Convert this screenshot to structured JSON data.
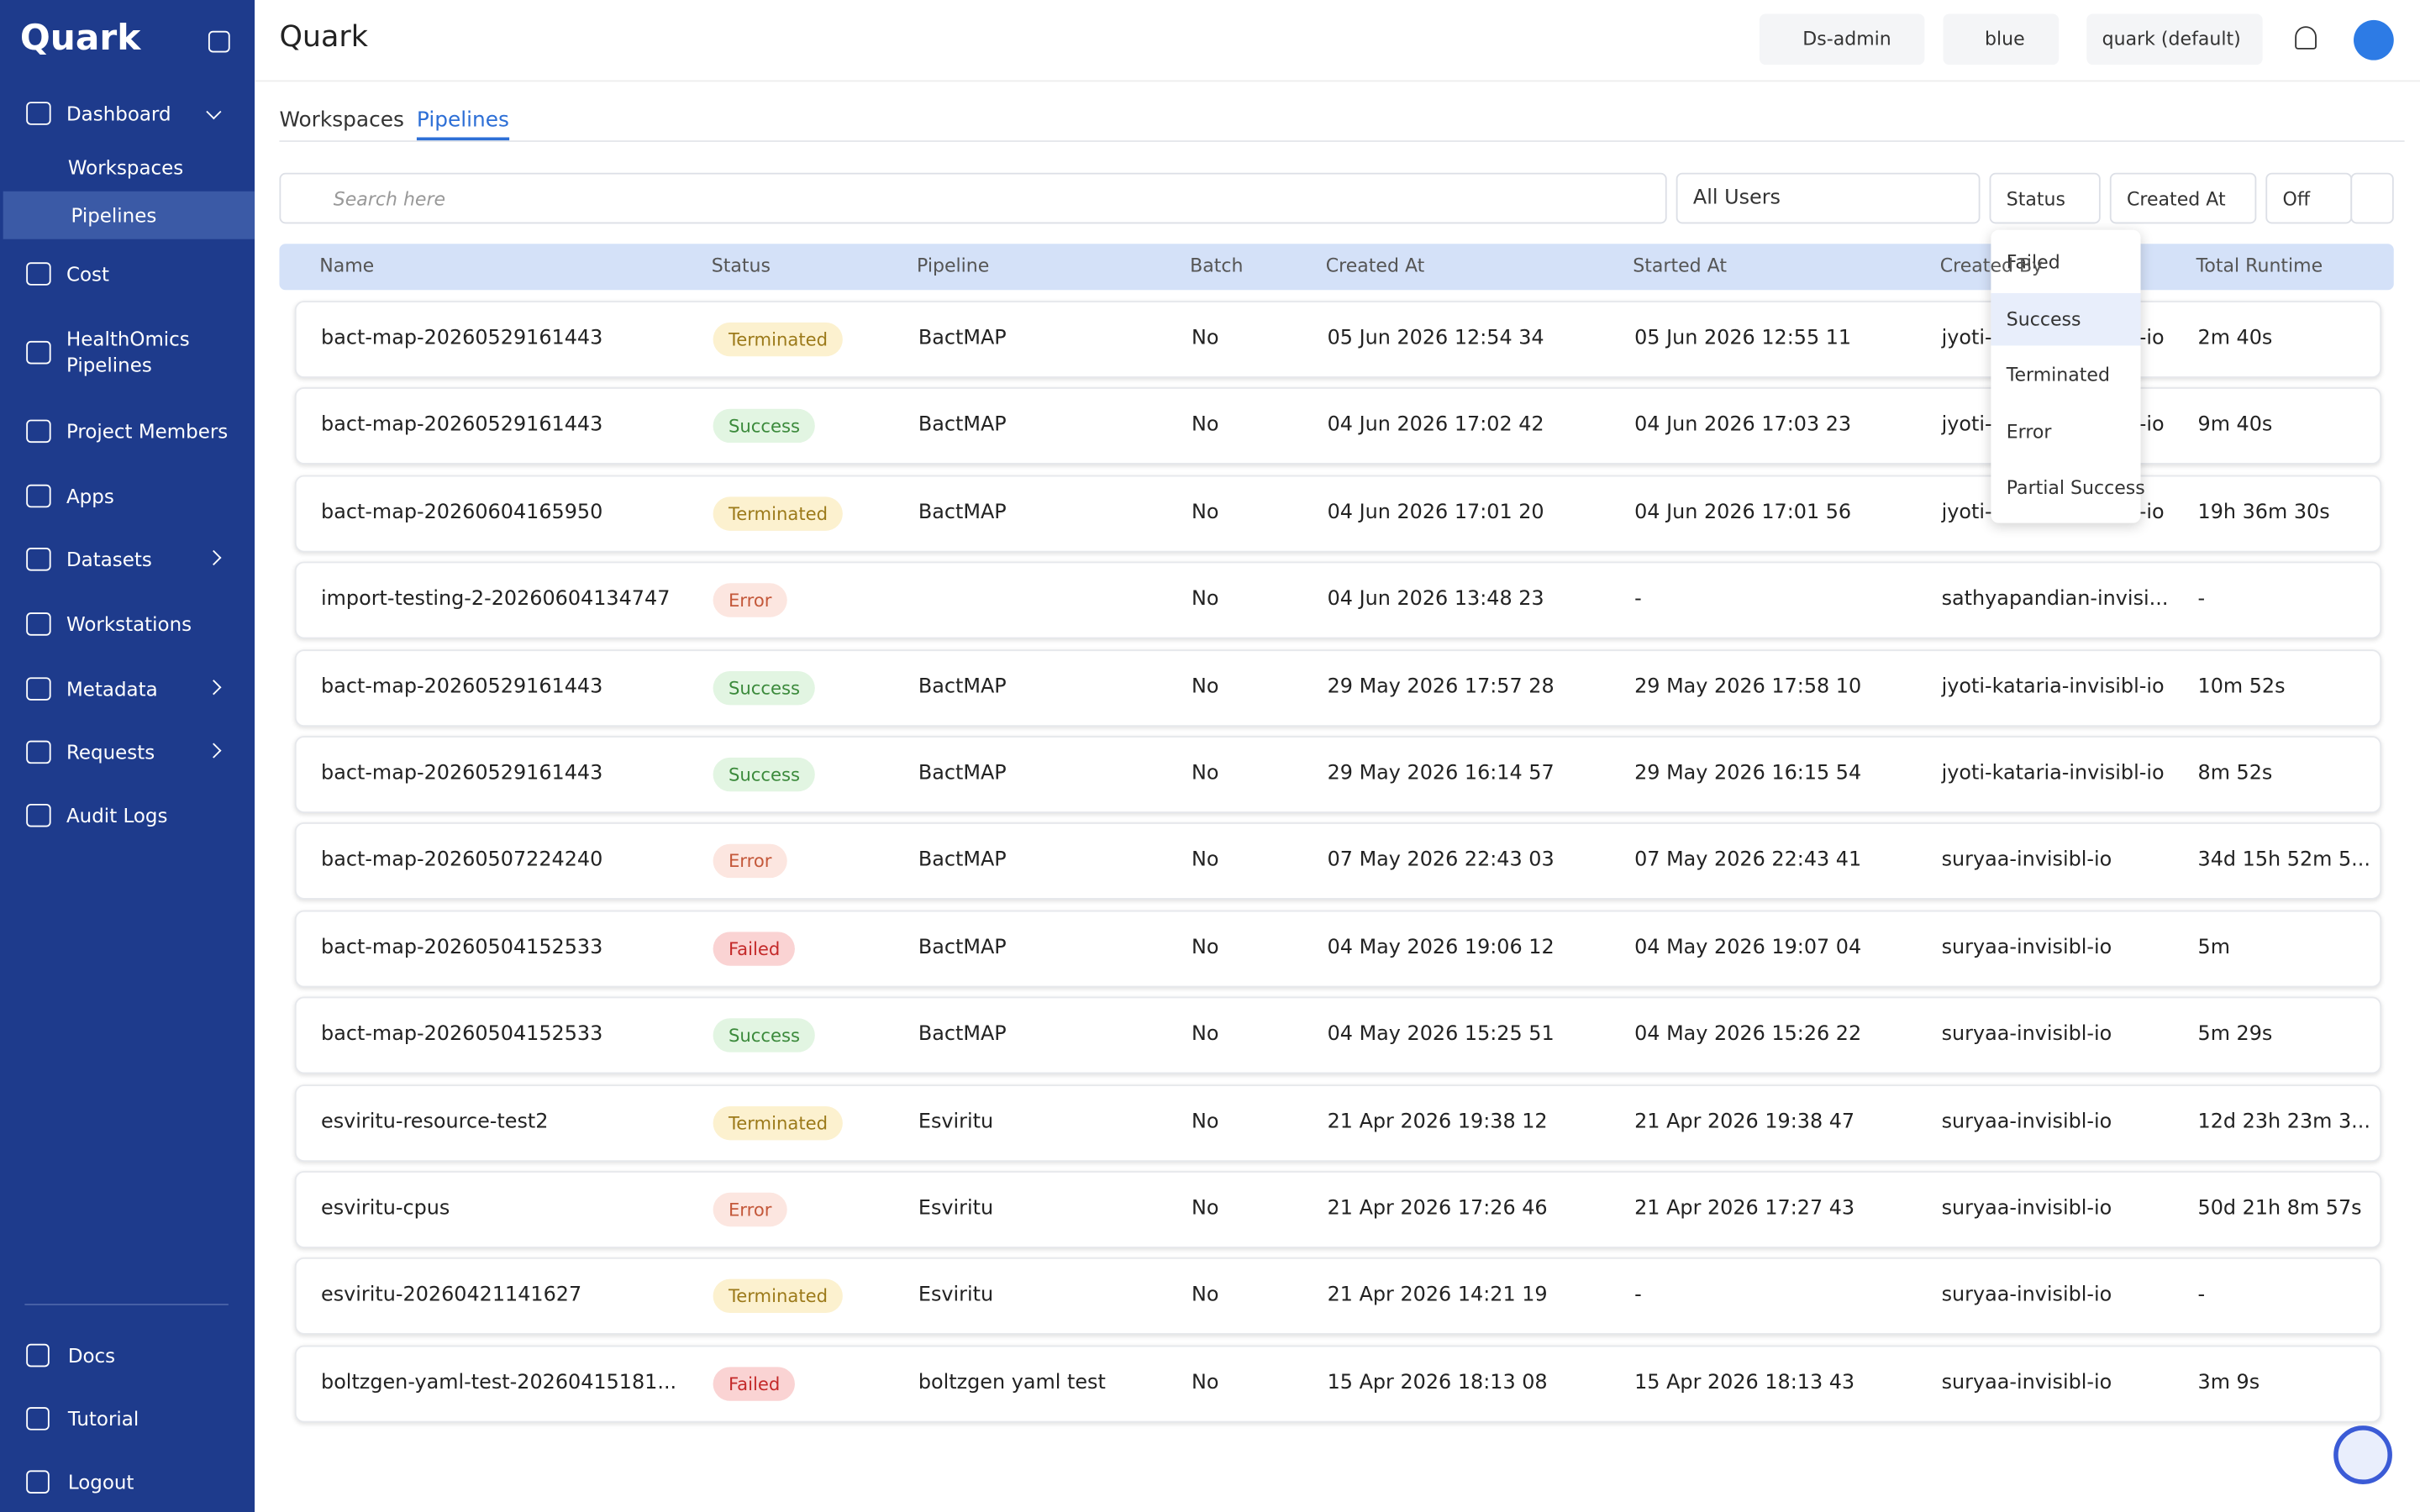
{
  "sidebar": {
    "logo": "Quark",
    "items": [
      "Dashboard",
      "Workspaces",
      "Pipelines",
      "Cost",
      "HealthOmics Pipelines",
      "Project Members",
      "Apps",
      "Datasets",
      "Workstations",
      "Metadata",
      "Requests",
      "Audit Logs"
    ],
    "bottom": [
      "Docs",
      "Tutorial",
      "Logout"
    ]
  },
  "header": {
    "title": "Quark",
    "role": "Ds-admin",
    "theme": "blue",
    "workspace": "quark (default)"
  },
  "tabs": [
    "Workspaces",
    "Pipelines"
  ],
  "filters": {
    "search_placeholder": "Search here",
    "users": "All Users",
    "status": "Status",
    "created": "Created At",
    "refresh": "Off"
  },
  "status_options": [
    "Failed",
    "Success",
    "Terminated",
    "Error",
    "Partial Success"
  ],
  "status_colors": {
    "Terminated": [
      "#fcf1cf",
      "#9c7a1a"
    ],
    "Success": [
      "#e2f5e2",
      "#3b8a3b"
    ],
    "Error": [
      "#fce6e0",
      "#c4583a"
    ],
    "Failed": [
      "#fad3d3",
      "#c42a2a"
    ]
  },
  "table": {
    "columns": [
      "Name",
      "Status",
      "Pipeline",
      "Batch",
      "Created At",
      "Started At",
      "Created By",
      "Total Runtime"
    ],
    "rows": [
      [
        "bact-map-20260529161443",
        "Terminated",
        "BactMAP",
        "No",
        "05 Jun 2026 12:54 34",
        "05 Jun 2026 12:55 11",
        "jyoti-kataria-invisibl-io",
        "2m 40s"
      ],
      [
        "bact-map-20260529161443",
        "Success",
        "BactMAP",
        "No",
        "04 Jun 2026 17:02 42",
        "04 Jun 2026 17:03 23",
        "jyoti-kataria-invisibl-io",
        "9m 40s"
      ],
      [
        "bact-map-20260604165950",
        "Terminated",
        "BactMAP",
        "No",
        "04 Jun 2026 17:01 20",
        "04 Jun 2026 17:01 56",
        "jyoti-kataria-invisibl-io",
        "19h 36m 30s"
      ],
      [
        "import-testing-2-20260604134747",
        "Error",
        "",
        "No",
        "04 Jun 2026 13:48 23",
        "-",
        "sathyapandian-invisi...",
        "-"
      ],
      [
        "bact-map-20260529161443",
        "Success",
        "BactMAP",
        "No",
        "29 May 2026 17:57 28",
        "29 May 2026 17:58 10",
        "jyoti-kataria-invisibl-io",
        "10m 52s"
      ],
      [
        "bact-map-20260529161443",
        "Success",
        "BactMAP",
        "No",
        "29 May 2026 16:14 57",
        "29 May 2026 16:15 54",
        "jyoti-kataria-invisibl-io",
        "8m 52s"
      ],
      [
        "bact-map-20260507224240",
        "Error",
        "BactMAP",
        "No",
        "07 May 2026 22:43 03",
        "07 May 2026 22:43 41",
        "suryaa-invisibl-io",
        "34d 15h 52m 5..."
      ],
      [
        "bact-map-20260504152533",
        "Failed",
        "BactMAP",
        "No",
        "04 May 2026 19:06 12",
        "04 May 2026 19:07 04",
        "suryaa-invisibl-io",
        "5m"
      ],
      [
        "bact-map-20260504152533",
        "Success",
        "BactMAP",
        "No",
        "04 May 2026 15:25 51",
        "04 May 2026 15:26 22",
        "suryaa-invisibl-io",
        "5m 29s"
      ],
      [
        "esviritu-resource-test2",
        "Terminated",
        "Esviritu",
        "No",
        "21 Apr 2026 19:38 12",
        "21 Apr 2026 19:38 47",
        "suryaa-invisibl-io",
        "12d 23h 23m 3..."
      ],
      [
        "esviritu-cpus",
        "Error",
        "Esviritu",
        "No",
        "21 Apr 2026 17:26 46",
        "21 Apr 2026 17:27 43",
        "suryaa-invisibl-io",
        "50d 21h 8m 57s"
      ],
      [
        "esviritu-20260421141627",
        "Terminated",
        "Esviritu",
        "No",
        "21 Apr 2026 14:21 19",
        "-",
        "suryaa-invisibl-io",
        "-"
      ],
      [
        "boltzgen-yaml-test-20260415181...",
        "Failed",
        "boltzgen yaml test",
        "No",
        "15 Apr 2026 18:13 08",
        "15 Apr 2026 18:13 43",
        "suryaa-invisibl-io",
        "3m 9s"
      ]
    ]
  }
}
